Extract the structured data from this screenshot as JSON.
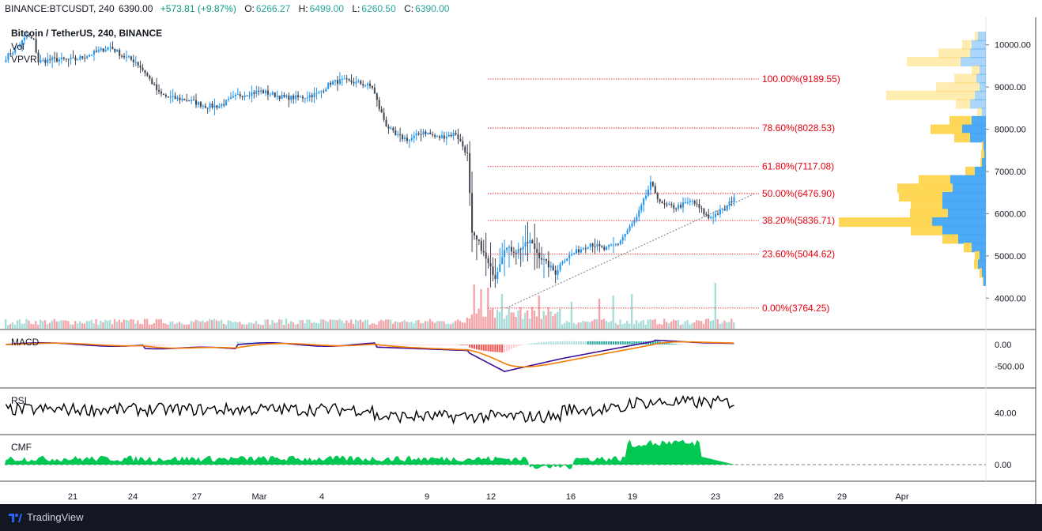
{
  "header": {
    "symbol": "BINANCE:BTCUSDT, 240",
    "price": "6390.00",
    "change": "+573.81 (+9.87%)",
    "o_label": "O:",
    "o": "6266.27",
    "h_label": "H:",
    "h": "6499.00",
    "l_label": "L:",
    "l": "6260.50",
    "c_label": "C:",
    "c": "6390.00"
  },
  "legend": {
    "title": "Bitcoin / TetherUS, 240, BINANCE",
    "vol": "Vol",
    "vpvr": "VPVR",
    "macd": "MACD",
    "rsi": "RSI",
    "cmf": "CMF"
  },
  "colors": {
    "up": "#2196f3",
    "down": "#434651",
    "fib": "#e6000f",
    "vol_up": "#a8dcd8",
    "vol_down": "#f4a3a8",
    "vpvr_up": "#42a5f5",
    "vpvr_down": "#ffd54f",
    "macd_line": "#3f0e9c",
    "signal_line": "#f57c00",
    "cmf_fill": "#00c853"
  },
  "fib_levels": [
    {
      "label": "100.00%(9189.55)",
      "price": 9189.55
    },
    {
      "label": "78.60%(8028.53)",
      "price": 8028.53
    },
    {
      "label": "61.80%(7117.08)",
      "price": 7117.08
    },
    {
      "label": "50.00%(6476.90)",
      "price": 6476.9
    },
    {
      "label": "38.20%(5836.71)",
      "price": 5836.71
    },
    {
      "label": "23.60%(5044.62)",
      "price": 5044.62
    },
    {
      "label": "0.00%(3764.25)",
      "price": 3764.25
    }
  ],
  "price_axis": [
    "10000.00",
    "9000.00",
    "8000.00",
    "7000.00",
    "6000.00",
    "5000.00",
    "4000.00"
  ],
  "macd_axis": [
    "0.00",
    "-500.00"
  ],
  "rsi_axis": [
    "40.00"
  ],
  "cmf_axis": [
    "0.00"
  ],
  "time_axis": [
    "21",
    "24",
    "27",
    "Mar",
    "4",
    "9",
    "12",
    "16",
    "19",
    "23",
    "26",
    "29",
    "Apr"
  ],
  "chart_data": {
    "type": "candlestick",
    "close_path": [
      [
        0,
        9700
      ],
      [
        4,
        9900
      ],
      [
        9,
        10200
      ],
      [
        12,
        10100
      ],
      [
        14,
        9600
      ],
      [
        20,
        9650
      ],
      [
        30,
        9650
      ],
      [
        40,
        9850
      ],
      [
        45,
        9950
      ],
      [
        50,
        9750
      ],
      [
        56,
        9600
      ],
      [
        60,
        9350
      ],
      [
        63,
        9100
      ],
      [
        66,
        8850
      ],
      [
        70,
        8750
      ],
      [
        78,
        8700
      ],
      [
        86,
        8550
      ],
      [
        92,
        8550
      ],
      [
        100,
        8800
      ],
      [
        110,
        8900
      ],
      [
        120,
        8750
      ],
      [
        127,
        8750
      ],
      [
        135,
        8850
      ],
      [
        140,
        9100
      ],
      [
        145,
        9150
      ],
      [
        152,
        9100
      ],
      [
        158,
        9000
      ],
      [
        161,
        8500
      ],
      [
        164,
        8100
      ],
      [
        168,
        7850
      ],
      [
        174,
        7750
      ],
      [
        180,
        7950
      ],
      [
        186,
        7800
      ],
      [
        194,
        7900
      ],
      [
        199,
        7400
      ],
      [
        201,
        5500
      ],
      [
        204,
        5300
      ],
      [
        208,
        4800
      ],
      [
        211,
        4500
      ],
      [
        215,
        5200
      ],
      [
        220,
        5100
      ],
      [
        226,
        5350
      ],
      [
        230,
        5000
      ],
      [
        237,
        4600
      ],
      [
        240,
        4900
      ],
      [
        246,
        5100
      ],
      [
        252,
        5300
      ],
      [
        258,
        5150
      ],
      [
        264,
        5300
      ],
      [
        268,
        5600
      ],
      [
        272,
        5900
      ],
      [
        275,
        6300
      ],
      [
        278,
        6700
      ],
      [
        283,
        6200
      ],
      [
        289,
        6150
      ],
      [
        296,
        6300
      ],
      [
        303,
        5900
      ],
      [
        310,
        6100
      ],
      [
        314,
        6390
      ]
    ],
    "volume_spikes": [
      [
        202,
        0.9
      ],
      [
        205,
        0.75
      ],
      [
        208,
        0.8
      ],
      [
        214,
        0.6
      ],
      [
        230,
        0.55
      ],
      [
        244,
        0.35
      ],
      [
        256,
        0.45
      ],
      [
        262,
        0.55
      ],
      [
        270,
        0.6
      ],
      [
        306,
        0.95
      ]
    ],
    "vpvr_profile": [
      [
        10200,
        10,
        4
      ],
      [
        10000,
        18,
        12
      ],
      [
        9800,
        20,
        40
      ],
      [
        9600,
        32,
        68
      ],
      [
        9400,
        8,
        10
      ],
      [
        9200,
        12,
        28
      ],
      [
        9000,
        8,
        55
      ],
      [
        8800,
        14,
        112
      ],
      [
        8600,
        20,
        18
      ],
      [
        8400,
        5,
        6
      ],
      [
        8200,
        18,
        28
      ],
      [
        8000,
        30,
        40
      ],
      [
        7800,
        20,
        20
      ],
      [
        7600,
        3,
        2
      ],
      [
        7400,
        2,
        4
      ],
      [
        7200,
        5,
        2
      ],
      [
        7000,
        14,
        12
      ],
      [
        6800,
        45,
        40
      ],
      [
        6600,
        42,
        70
      ],
      [
        6400,
        55,
        55
      ],
      [
        6200,
        55,
        40
      ],
      [
        6000,
        48,
        48
      ],
      [
        5800,
        68,
        118
      ],
      [
        5600,
        55,
        40
      ],
      [
        5400,
        35,
        20
      ],
      [
        5200,
        18,
        10
      ],
      [
        5000,
        8,
        6
      ],
      [
        4800,
        10,
        5
      ],
      [
        4600,
        5,
        3
      ],
      [
        4400,
        3,
        1
      ]
    ],
    "rsi_axis_range": [
      0,
      100
    ],
    "price_axis_range": [
      3500,
      10500
    ]
  }
}
